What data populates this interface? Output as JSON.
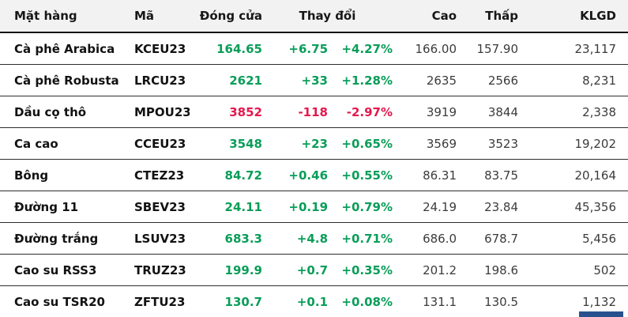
{
  "colors": {
    "positive": "#0a9d59",
    "negative": "#e3184c",
    "header_bg": "#f2f2f2",
    "row_border": "#2d2d2d",
    "bold_text": "#121212",
    "value_text": "#3b3b3b",
    "cutoff_element_blue": "#28518e"
  },
  "table": {
    "headers": {
      "commodity": "Mặt hàng",
      "code": "Mã",
      "close": "Đóng cửa",
      "change": "Thay đổi",
      "high": "Cao",
      "low": "Thấp",
      "volume": "KLGD"
    },
    "rows": [
      {
        "name": "Cà phê Arabica",
        "code": "KCEU23",
        "close": "164.65",
        "change": "+6.75",
        "pct": "+4.27%",
        "high": "166.00",
        "low": "157.90",
        "volume": "23,117",
        "trend": "up"
      },
      {
        "name": "Cà phê Robusta",
        "code": "LRCU23",
        "close": "2621",
        "change": "+33",
        "pct": "+1.28%",
        "high": "2635",
        "low": "2566",
        "volume": "8,231",
        "trend": "up"
      },
      {
        "name": "Dầu cọ thô",
        "code": "MPOU23",
        "close": "3852",
        "change": "-118",
        "pct": "-2.97%",
        "high": "3919",
        "low": "3844",
        "volume": "2,338",
        "trend": "down"
      },
      {
        "name": "Ca cao",
        "code": "CCEU23",
        "close": "3548",
        "change": "+23",
        "pct": "+0.65%",
        "high": "3569",
        "low": "3523",
        "volume": "19,202",
        "trend": "up"
      },
      {
        "name": "Bông",
        "code": "CTEZ23",
        "close": "84.72",
        "change": "+0.46",
        "pct": "+0.55%",
        "high": "86.31",
        "low": "83.75",
        "volume": "20,164",
        "trend": "up"
      },
      {
        "name": "Đường 11",
        "code": "SBEV23",
        "close": "24.11",
        "change": "+0.19",
        "pct": "+0.79%",
        "high": "24.19",
        "low": "23.84",
        "volume": "45,356",
        "trend": "up"
      },
      {
        "name": "Đường trắng",
        "code": "LSUV23",
        "close": "683.3",
        "change": "+4.8",
        "pct": "+0.71%",
        "high": "686.0",
        "low": "678.7",
        "volume": "5,456",
        "trend": "up"
      },
      {
        "name": "Cao su RSS3",
        "code": "TRUZ23",
        "close": "199.9",
        "change": "+0.7",
        "pct": "+0.35%",
        "high": "201.2",
        "low": "198.6",
        "volume": "502",
        "trend": "up"
      },
      {
        "name": "Cao su TSR20",
        "code": "ZFTU23",
        "close": "130.7",
        "change": "+0.1",
        "pct": "+0.08%",
        "high": "131.1",
        "low": "130.5",
        "volume": "1,132",
        "trend": "up"
      }
    ]
  }
}
